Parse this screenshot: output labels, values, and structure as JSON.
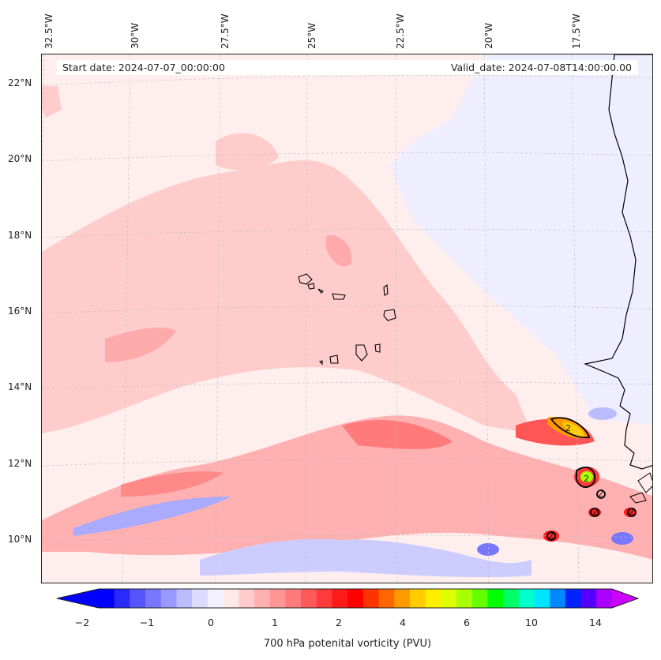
{
  "map": {
    "longitude_labels": [
      "32.5°W",
      "30°W",
      "27.5°W",
      "25°W",
      "22.5°W",
      "20°W",
      "17.5°W"
    ],
    "latitude_labels": [
      "22°N",
      "20°N",
      "18°N",
      "16°N",
      "14°N",
      "12°N",
      "10°N"
    ],
    "start_date": "Start date: 2024-07-07_00:00:00",
    "valid_date": "Valid_date: 2024-07-08T14:00:00.00",
    "contour_labels": [
      "2",
      "2",
      "2",
      "2",
      "2",
      "2"
    ]
  },
  "colorbar": {
    "ticks": [
      "−2",
      "−1",
      "0",
      "1",
      "2",
      "4",
      "6",
      "10",
      "14"
    ],
    "label": "700 hPa potenital vorticity (PVU)",
    "colors": [
      "#0000ff",
      "#2a2aff",
      "#5555ff",
      "#7777ff",
      "#9999ff",
      "#bbbbff",
      "#dddcff",
      "#f3f0ff",
      "#ffe8e8",
      "#ffcccc",
      "#ffb0b0",
      "#ff9595",
      "#ff7a7a",
      "#ff5a5a",
      "#ff3a3a",
      "#ff1a1a",
      "#ff0000",
      "#ff3300",
      "#ff6600",
      "#ff9900",
      "#ffcc00",
      "#ffee00",
      "#ddff00",
      "#aaff00",
      "#66ff00",
      "#00ff00",
      "#00ff66",
      "#00ffcc",
      "#00e5ff",
      "#0088ff",
      "#0022ff",
      "#5500ff",
      "#aa00ff"
    ],
    "min_color": "#0000ff",
    "max_color": "#cc00ff"
  },
  "colors": {
    "background_field": "#ffeeee",
    "light_red": "#ffcccc",
    "medium_red": "#ff9999",
    "strong_red": "#ff5555",
    "light_blue": "#eeeeff",
    "medium_blue": "#aaaaff",
    "coast": "#000000"
  }
}
